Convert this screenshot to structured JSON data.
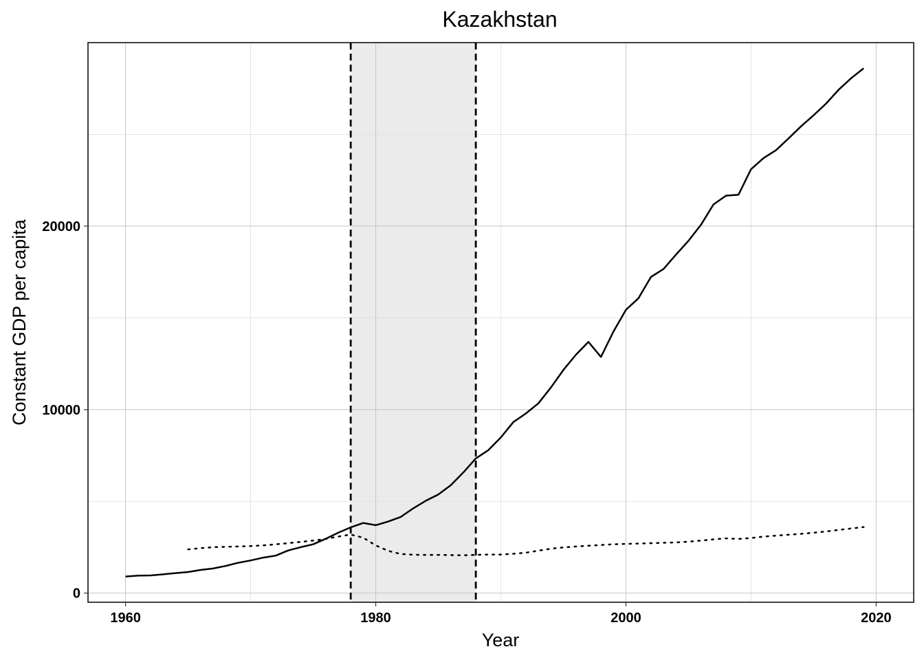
{
  "chart_data": {
    "type": "line",
    "title": "Kazakhstan",
    "xlabel": "Year",
    "ylabel": "Constant GDP per capita",
    "xlim": [
      1957,
      2023
    ],
    "ylim": [
      -500,
      30000
    ],
    "xticks": [
      1960,
      1980,
      2000,
      2020
    ],
    "yticks": [
      0,
      10000,
      20000
    ],
    "xtick_labels": [
      "1960",
      "1980",
      "2000",
      "2020"
    ],
    "ytick_labels": [
      "0",
      "10000",
      "20000"
    ],
    "grid": true,
    "legend": "none",
    "shaded_region": {
      "x_start": 1978,
      "x_end": 1988,
      "color": "#ebebeb"
    },
    "vlines": [
      1978,
      1988
    ],
    "series": [
      {
        "style": "solid",
        "x": [
          1960,
          1961,
          1962,
          1963,
          1964,
          1965,
          1966,
          1967,
          1968,
          1969,
          1970,
          1971,
          1972,
          1973,
          1974,
          1975,
          1976,
          1977,
          1978,
          1979,
          1980,
          1981,
          1982,
          1983,
          1984,
          1985,
          1986,
          1987,
          1988,
          1989,
          1990,
          1991,
          1992,
          1993,
          1994,
          1995,
          1996,
          1997,
          1998,
          1999,
          2000,
          2001,
          2002,
          2003,
          2004,
          2005,
          2006,
          2007,
          2008,
          2009,
          2010,
          2011,
          2012,
          2013,
          2014,
          2015,
          2016,
          2017,
          2018,
          2019
        ],
        "y": [
          900,
          950,
          960,
          1020,
          1090,
          1150,
          1260,
          1340,
          1480,
          1650,
          1780,
          1930,
          2040,
          2320,
          2500,
          2660,
          2960,
          3290,
          3580,
          3820,
          3700,
          3900,
          4150,
          4620,
          5030,
          5370,
          5880,
          6570,
          7340,
          7790,
          8480,
          9320,
          9790,
          10340,
          11200,
          12160,
          12990,
          13690,
          12870,
          14250,
          15440,
          16070,
          17230,
          17660,
          18450,
          19200,
          20080,
          21180,
          21660,
          21710,
          23100,
          23710,
          24140,
          24780,
          25440,
          26040,
          26680,
          27430,
          28060,
          28600
        ]
      },
      {
        "style": "dotted",
        "x": [
          1965,
          1966,
          1967,
          1968,
          1969,
          1970,
          1971,
          1972,
          1973,
          1974,
          1975,
          1976,
          1977,
          1978,
          1979,
          1980,
          1981,
          1982,
          1983,
          1984,
          1985,
          1986,
          1987,
          1988,
          1989,
          1990,
          1991,
          1992,
          1993,
          1994,
          1995,
          1996,
          1997,
          1998,
          1999,
          2000,
          2001,
          2002,
          2003,
          2004,
          2005,
          2006,
          2007,
          2008,
          2009,
          2010,
          2011,
          2012,
          2013,
          2014,
          2015,
          2016,
          2017,
          2018,
          2019
        ],
        "y": [
          2380,
          2450,
          2500,
          2520,
          2540,
          2560,
          2600,
          2660,
          2720,
          2790,
          2860,
          2950,
          3080,
          3190,
          3020,
          2600,
          2300,
          2130,
          2090,
          2080,
          2080,
          2070,
          2060,
          2080,
          2100,
          2100,
          2140,
          2200,
          2310,
          2420,
          2490,
          2540,
          2580,
          2620,
          2660,
          2680,
          2700,
          2720,
          2740,
          2760,
          2800,
          2860,
          2930,
          2980,
          2950,
          3000,
          3080,
          3130,
          3180,
          3230,
          3290,
          3360,
          3440,
          3520,
          3600
        ]
      }
    ]
  }
}
